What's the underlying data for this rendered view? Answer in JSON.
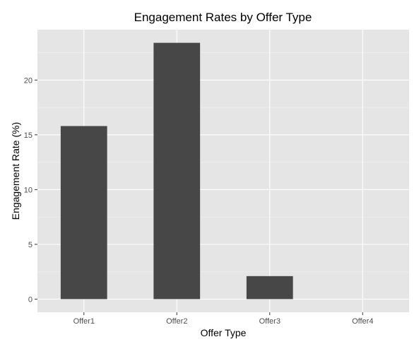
{
  "colors": {
    "panel_background": "#e5e5e5",
    "grid_major": "#ffffff",
    "grid_minor": "#f0f0f0",
    "bar_fill": "#474747",
    "tick": "#333333"
  },
  "chart_data": {
    "type": "bar",
    "title": "Engagement Rates by Offer Type",
    "xlabel": "Offer Type",
    "ylabel": "Engagement Rate (%)",
    "categories": [
      "Offer1",
      "Offer2",
      "Offer3",
      "Offer4"
    ],
    "values": [
      15.8,
      23.4,
      2.1,
      0
    ],
    "ylim": [
      -1.2,
      24.6
    ],
    "yticks": [
      0,
      5,
      10,
      15,
      20
    ],
    "grid": true,
    "legend": "none"
  }
}
